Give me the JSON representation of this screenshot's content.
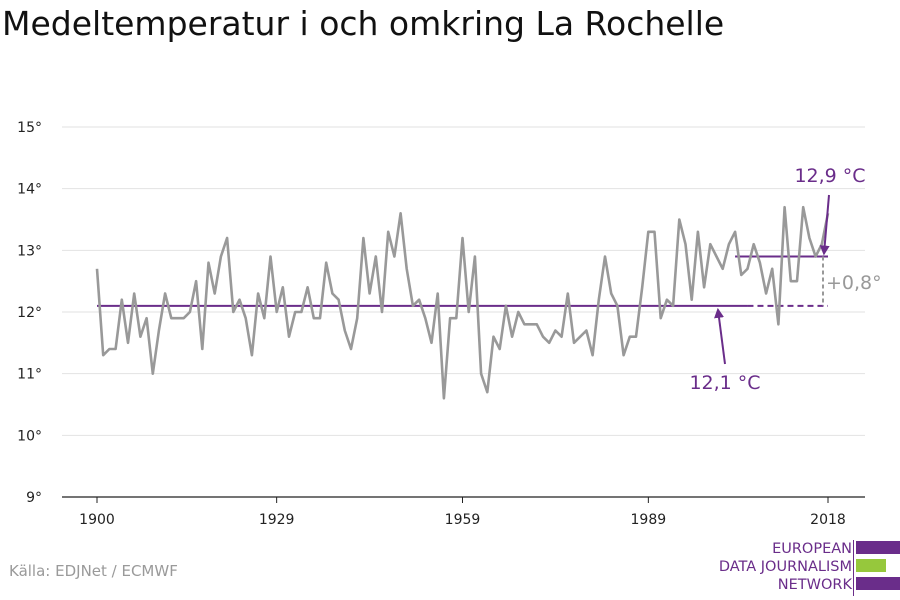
{
  "title": "Medeltemperatur i och omkring La Rochelle",
  "source": "Källa: EDJNet / ECMWF",
  "logo": {
    "lines": [
      "EUROPEAN",
      "DATA JOURNALISM",
      "NETWORK"
    ],
    "colors": {
      "purple": "#6a2d8a",
      "green": "#96c83c"
    }
  },
  "colors": {
    "series": "#999999",
    "reference": "#6a2d8a",
    "grid": "#e2e2e2",
    "axis": "#222222"
  },
  "chart_data": {
    "type": "line",
    "title": "Medeltemperatur i och omkring La Rochelle",
    "xlabel": "",
    "ylabel": "",
    "xlim": [
      1900,
      2018
    ],
    "ylim": [
      9,
      15
    ],
    "x_ticks": [
      1900,
      1929,
      1959,
      1989,
      2018
    ],
    "y_ticks": [
      9,
      10,
      11,
      12,
      13,
      14,
      15
    ],
    "y_tick_labels": [
      "9°",
      "10°",
      "11°",
      "12°",
      "13°",
      "14°",
      "15°"
    ],
    "grid": true,
    "series": [
      {
        "x": [
          1900,
          1901,
          1902,
          1903,
          1904,
          1905,
          1906,
          1907,
          1908,
          1909,
          1910,
          1911,
          1912,
          1913,
          1914,
          1915,
          1916,
          1917,
          1918,
          1919,
          1920,
          1921,
          1922,
          1923,
          1924,
          1925,
          1926,
          1927,
          1928,
          1929,
          1930,
          1931,
          1932,
          1933,
          1934,
          1935,
          1936,
          1937,
          1938,
          1939,
          1940,
          1941,
          1942,
          1943,
          1944,
          1945,
          1946,
          1947,
          1948,
          1949,
          1950,
          1951,
          1952,
          1953,
          1954,
          1955,
          1956,
          1957,
          1958,
          1959,
          1960,
          1961,
          1962,
          1963,
          1964,
          1965,
          1966,
          1967,
          1968,
          1969,
          1970,
          1971,
          1972,
          1973,
          1974,
          1975,
          1976,
          1977,
          1978,
          1979,
          1980,
          1981,
          1982,
          1983,
          1984,
          1985,
          1986,
          1987,
          1988,
          1989,
          1990,
          1991,
          1992,
          1993,
          1994,
          1995,
          1996,
          1997,
          1998,
          1999,
          2000,
          2001,
          2002,
          2003,
          2004,
          2005,
          2006,
          2007,
          2008,
          2009,
          2010,
          2011,
          2012,
          2013,
          2014,
          2015,
          2016,
          2017,
          2018
        ],
        "values": [
          12.7,
          11.3,
          11.4,
          11.4,
          12.2,
          11.5,
          12.3,
          11.6,
          11.9,
          11.0,
          11.7,
          12.3,
          11.9,
          11.9,
          11.9,
          12.0,
          12.5,
          11.4,
          12.8,
          12.3,
          12.9,
          13.2,
          12.0,
          12.2,
          11.9,
          11.3,
          12.3,
          11.9,
          12.9,
          12.0,
          12.4,
          11.6,
          12.0,
          12.0,
          12.4,
          11.9,
          11.9,
          12.8,
          12.3,
          12.2,
          11.7,
          11.4,
          11.9,
          13.2,
          12.3,
          12.9,
          12.0,
          13.3,
          12.9,
          13.6,
          12.7,
          12.1,
          12.2,
          11.9,
          11.5,
          12.3,
          10.6,
          11.9,
          11.9,
          13.2,
          12.0,
          12.9,
          11.0,
          10.7,
          11.6,
          11.4,
          12.1,
          11.6,
          12.0,
          11.8,
          11.8,
          11.8,
          11.6,
          11.5,
          11.7,
          11.6,
          12.3,
          11.5,
          11.6,
          11.7,
          11.3,
          12.2,
          12.9,
          12.3,
          12.1,
          11.3,
          11.6,
          11.6,
          12.4,
          13.3,
          13.3,
          11.9,
          12.2,
          12.1,
          13.5,
          13.1,
          12.2,
          13.3,
          12.4,
          13.1,
          12.9,
          12.7,
          13.1,
          13.3,
          12.6,
          12.7,
          13.1,
          12.8,
          12.3,
          12.7,
          11.8,
          13.7,
          12.5,
          12.5,
          13.7,
          13.2,
          12.9,
          13.1,
          13.6
        ]
      }
    ],
    "reference_lines": [
      {
        "label": "12,1 °C",
        "value": 12.1,
        "from": 1900,
        "to": 2018,
        "solid_until": 2005
      },
      {
        "label": "12,9 °C",
        "value": 12.9,
        "from": 2003,
        "to": 2018
      }
    ],
    "difference_label": "+0,8°"
  }
}
